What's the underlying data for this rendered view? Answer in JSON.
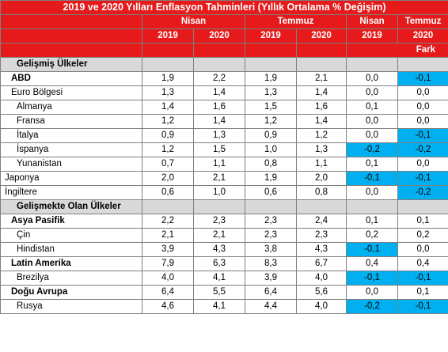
{
  "title": "2019 ve 2020 Yılları Enflasyon Tahminleri (Yıllık Ortalama % Değişim)",
  "headers": {
    "nisan": "Nisan",
    "temmuz": "Temmuz",
    "fark_nisan": "Nisan",
    "fark_temmuz": "Temmuz",
    "y2019": "2019",
    "y2020": "2020",
    "fark": "Fark"
  },
  "highlight_color": "#00b0f0",
  "header_color": "#e61a1a",
  "rows": [
    {
      "type": "section",
      "label": "Gelişmiş Ülkeler"
    },
    {
      "type": "data",
      "label": "ABD",
      "level": 1,
      "bold": true,
      "values": [
        "1,9",
        "2,2",
        "1,9",
        "2,1",
        "0,0",
        "-0,1"
      ],
      "highlight": [
        false,
        true
      ]
    },
    {
      "type": "data",
      "label": "Euro Bölgesi",
      "level": 1,
      "bold": false,
      "values": [
        "1,3",
        "1,4",
        "1,3",
        "1,4",
        "0,0",
        "0,0"
      ],
      "highlight": [
        false,
        false
      ]
    },
    {
      "type": "data",
      "label": "Almanya",
      "level": 2,
      "bold": false,
      "values": [
        "1,4",
        "1,6",
        "1,5",
        "1,6",
        "0,1",
        "0,0"
      ],
      "highlight": [
        false,
        false
      ]
    },
    {
      "type": "data",
      "label": "Fransa",
      "level": 2,
      "bold": false,
      "values": [
        "1,2",
        "1,4",
        "1,2",
        "1,4",
        "0,0",
        "0,0"
      ],
      "highlight": [
        false,
        false
      ]
    },
    {
      "type": "data",
      "label": "İtalya",
      "level": 2,
      "bold": false,
      "values": [
        "0,9",
        "1,3",
        "0,9",
        "1,2",
        "0,0",
        "-0,1"
      ],
      "highlight": [
        false,
        true
      ]
    },
    {
      "type": "data",
      "label": "İspanya",
      "level": 2,
      "bold": false,
      "values": [
        "1,2",
        "1,5",
        "1,0",
        "1,3",
        "-0,2",
        "-0,2"
      ],
      "highlight": [
        true,
        true
      ]
    },
    {
      "type": "data",
      "label": "Yunanistan",
      "level": 2,
      "bold": false,
      "values": [
        "0,7",
        "1,1",
        "0,8",
        "1,1",
        "0,1",
        "0,0"
      ],
      "highlight": [
        false,
        false
      ]
    },
    {
      "type": "data",
      "label": "Japonya",
      "level": 0,
      "bold": false,
      "values": [
        "2,0",
        "2,1",
        "1,9",
        "2,0",
        "-0,1",
        "-0,1"
      ],
      "highlight": [
        true,
        true
      ]
    },
    {
      "type": "data",
      "label": "İngiltere",
      "level": 0,
      "bold": false,
      "values": [
        "0,6",
        "1,0",
        "0,6",
        "0,8",
        "0,0",
        "-0,2"
      ],
      "highlight": [
        false,
        true
      ]
    },
    {
      "type": "section",
      "label": "Gelişmekte Olan Ülkeler"
    },
    {
      "type": "data",
      "label": "Asya Pasifik",
      "level": 1,
      "bold": true,
      "values": [
        "2,2",
        "2,3",
        "2,3",
        "2,4",
        "0,1",
        "0,1"
      ],
      "highlight": [
        false,
        false
      ]
    },
    {
      "type": "data",
      "label": "Çin",
      "level": 2,
      "bold": false,
      "values": [
        "2,1",
        "2,1",
        "2,3",
        "2,3",
        "0,2",
        "0,2"
      ],
      "highlight": [
        false,
        false
      ]
    },
    {
      "type": "data",
      "label": "Hindistan",
      "level": 2,
      "bold": false,
      "values": [
        "3,9",
        "4,3",
        "3,8",
        "4,3",
        "-0,1",
        "0,0"
      ],
      "highlight": [
        true,
        false
      ]
    },
    {
      "type": "data",
      "label": "Latin Amerika",
      "level": 1,
      "bold": true,
      "values": [
        "7,9",
        "6,3",
        "8,3",
        "6,7",
        "0,4",
        "0,4"
      ],
      "highlight": [
        false,
        false
      ]
    },
    {
      "type": "data",
      "label": "Brezilya",
      "level": 2,
      "bold": false,
      "values": [
        "4,0",
        "4,1",
        "3,9",
        "4,0",
        "-0,1",
        "-0,1"
      ],
      "highlight": [
        true,
        true
      ]
    },
    {
      "type": "data",
      "label": "Doğu Avrupa",
      "level": 1,
      "bold": true,
      "values": [
        "6,4",
        "5,5",
        "6,4",
        "5,6",
        "0,0",
        "0,1"
      ],
      "highlight": [
        false,
        false
      ]
    },
    {
      "type": "data",
      "label": "Rusya",
      "level": 2,
      "bold": false,
      "values": [
        "4,6",
        "4,1",
        "4,4",
        "4,0",
        "-0,2",
        "-0,1"
      ],
      "highlight": [
        true,
        true
      ]
    }
  ]
}
